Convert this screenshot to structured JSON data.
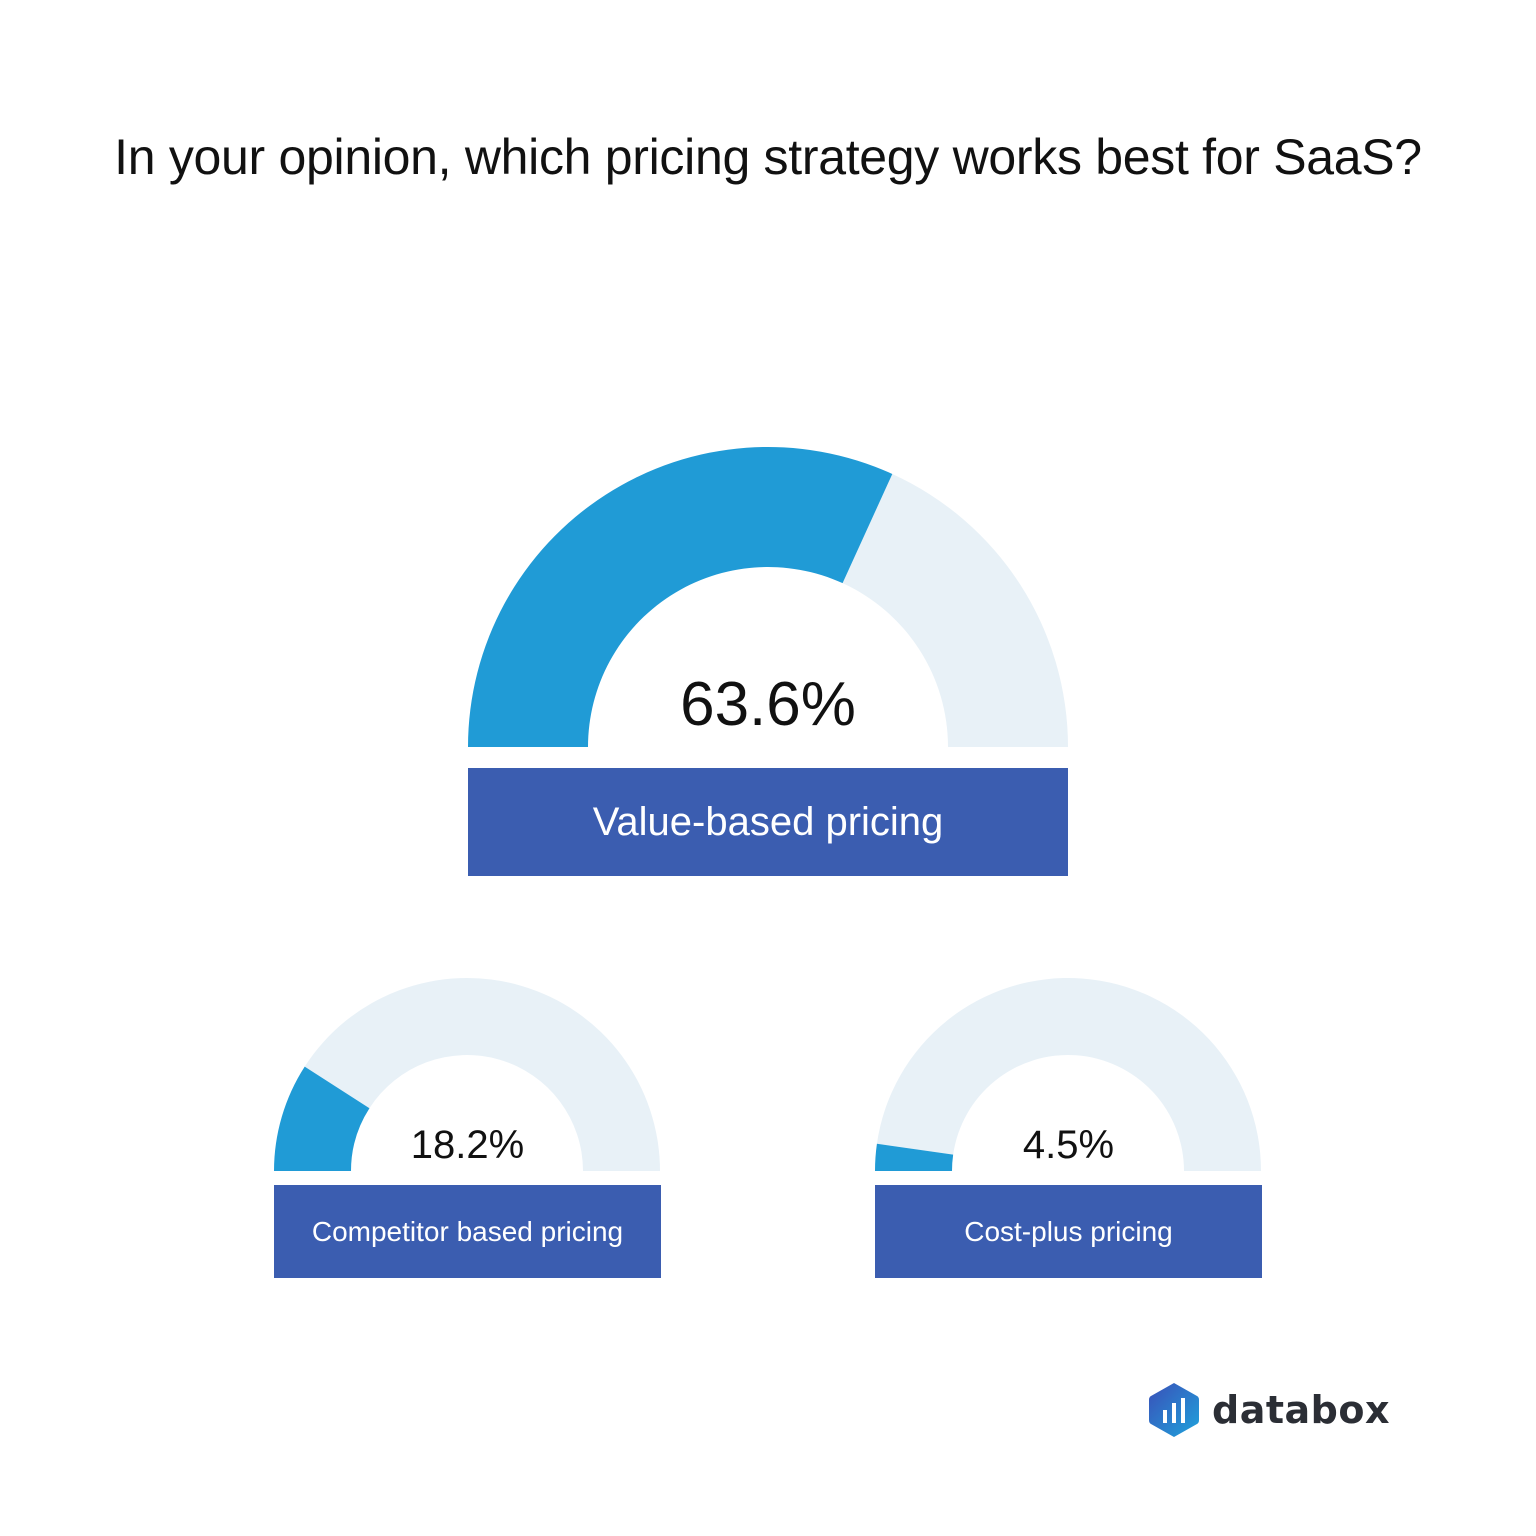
{
  "title": "In your opinion, which pricing strategy works best for SaaS?",
  "colors": {
    "fill": "#209bd6",
    "track": "#e8f1f7",
    "label_bg": "#3b5db0",
    "text": "#111111"
  },
  "chart_data": {
    "type": "gauge",
    "title": "In your opinion, which pricing strategy works best for SaaS?",
    "series": [
      {
        "name": "Value-based pricing",
        "value": 63.6,
        "display": "63.6%"
      },
      {
        "name": "Competitor based pricing",
        "value": 18.2,
        "display": "18.2%"
      },
      {
        "name": "Cost-plus pricing",
        "value": 4.5,
        "display": "4.5%"
      }
    ],
    "range": [
      0,
      100
    ]
  },
  "gauges": [
    {
      "value": 63.6,
      "display": "63.6%",
      "label": "Value-based pricing"
    },
    {
      "value": 18.2,
      "display": "18.2%",
      "label": "Competitor based pricing"
    },
    {
      "value": 4.5,
      "display": "4.5%",
      "label": "Cost-plus pricing"
    }
  ],
  "brand": {
    "name": "databox",
    "icon": "databox-logo-icon"
  }
}
